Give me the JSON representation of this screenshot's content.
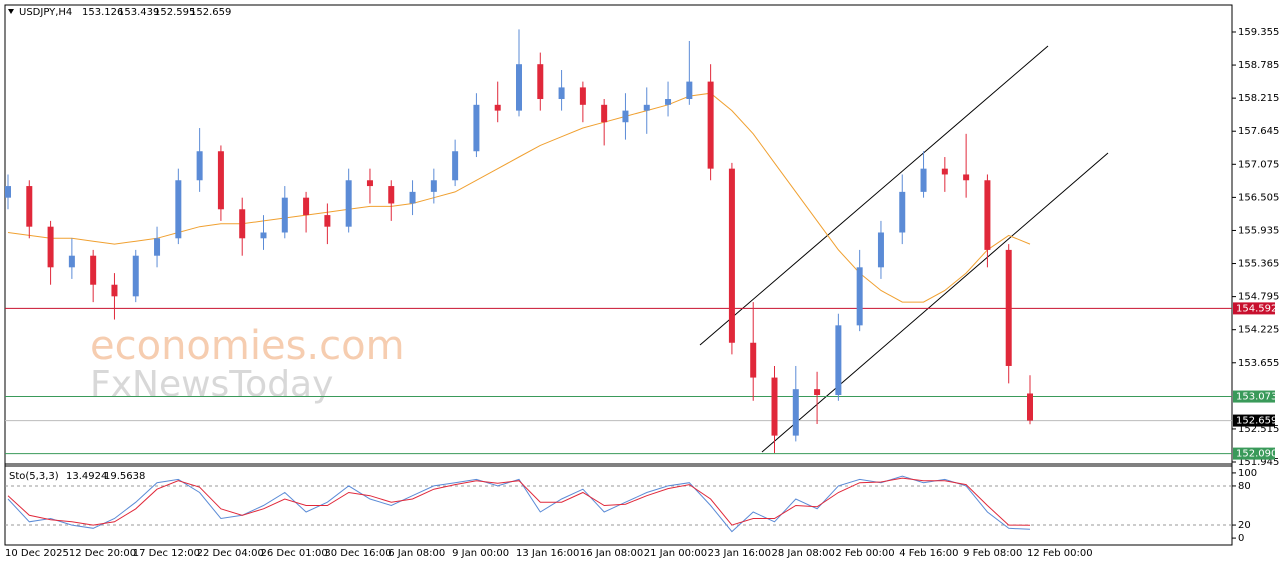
{
  "chart_data": {
    "type": "candlestick",
    "title": "USDJPY,H4",
    "ohlc_header": [
      153.126,
      153.439,
      152.595,
      152.659
    ],
    "categories": [
      "10 Dec 2025",
      null,
      null,
      "12 Dec 20:00",
      null,
      null,
      "17 Dec 12:00",
      null,
      null,
      "22 Dec 04:00",
      null,
      null,
      "26 Dec 01:00",
      null,
      null,
      "30 Dec 16:00",
      null,
      null,
      "6 Jan 08:00",
      null,
      null,
      "9 Jan 00:00",
      null,
      null,
      "13 Jan 16:00",
      null,
      null,
      "16 Jan 08:00",
      null,
      null,
      "21 Jan 00:00",
      null,
      null,
      "23 Jan 16:00",
      null,
      null,
      "28 Jan 08:00",
      null,
      null,
      "2 Feb 00:00",
      null,
      null,
      "4 Feb 16:00",
      null,
      null,
      "9 Feb 08:00",
      null,
      null,
      "12 Feb 00:00"
    ],
    "open": [
      156.5,
      156.7,
      156.0,
      155.3,
      155.5,
      155.0,
      154.8,
      155.5,
      155.8,
      156.8,
      157.3,
      156.3,
      155.8,
      155.9,
      156.5,
      156.2,
      156.0,
      156.8,
      156.7,
      156.4,
      156.6,
      156.8,
      157.3,
      158.1,
      158.0,
      158.8,
      158.2,
      158.4,
      158.1,
      157.8,
      158.0,
      158.1,
      158.2,
      158.5,
      157.0,
      154.0,
      153.4,
      152.4,
      153.2,
      153.1,
      154.3,
      155.3,
      155.9,
      156.6,
      157.0,
      156.9,
      156.8,
      155.6,
      153.126
    ],
    "high": [
      156.9,
      156.8,
      156.1,
      155.8,
      155.6,
      155.2,
      155.6,
      156.0,
      157.0,
      157.7,
      157.4,
      156.5,
      156.2,
      156.7,
      156.6,
      156.4,
      157.0,
      157.0,
      156.8,
      156.8,
      157.0,
      157.5,
      158.3,
      158.5,
      159.4,
      159.0,
      158.7,
      158.5,
      158.2,
      158.3,
      158.4,
      158.5,
      159.2,
      158.8,
      157.1,
      154.7,
      153.6,
      153.6,
      153.5,
      154.5,
      155.6,
      156.1,
      156.9,
      157.3,
      157.2,
      157.6,
      156.9,
      155.7,
      153.439
    ],
    "low": [
      156.3,
      155.8,
      155.0,
      155.1,
      154.7,
      154.4,
      154.7,
      155.3,
      155.7,
      156.6,
      156.1,
      155.5,
      155.6,
      155.8,
      155.9,
      155.7,
      155.9,
      156.4,
      156.1,
      156.2,
      156.4,
      156.7,
      157.2,
      157.8,
      157.9,
      158.0,
      158.0,
      157.8,
      157.4,
      157.5,
      157.6,
      157.9,
      158.1,
      156.8,
      153.8,
      153.0,
      152.1,
      152.3,
      152.6,
      153.0,
      154.2,
      155.1,
      155.7,
      156.5,
      156.6,
      156.5,
      155.3,
      153.3,
      152.595
    ],
    "close": [
      156.7,
      156.0,
      155.3,
      155.5,
      155.0,
      154.8,
      155.5,
      155.8,
      156.8,
      157.3,
      156.3,
      155.8,
      155.9,
      156.5,
      156.2,
      156.0,
      156.8,
      156.7,
      156.4,
      156.6,
      156.8,
      157.3,
      158.1,
      158.0,
      158.8,
      158.2,
      158.4,
      158.1,
      157.8,
      158.0,
      158.1,
      158.2,
      158.5,
      157.0,
      154.0,
      153.4,
      152.4,
      153.2,
      153.1,
      154.3,
      155.3,
      155.9,
      156.6,
      157.0,
      156.9,
      156.8,
      155.6,
      153.6,
      152.659
    ],
    "up_color": "#5b8bd6",
    "down_color": "#e0283a",
    "ylim": [
      151.928,
      159.82
    ],
    "yticks": [
      159.355,
      158.785,
      158.215,
      157.645,
      157.075,
      156.505,
      155.935,
      155.365,
      154.795,
      154.225,
      153.655,
      152.515,
      151.945
    ],
    "ma": {
      "color": "#f0a030",
      "values": [
        155.9,
        155.85,
        155.8,
        155.8,
        155.75,
        155.7,
        155.75,
        155.8,
        155.9,
        156.0,
        156.05,
        156.05,
        156.1,
        156.15,
        156.2,
        156.25,
        156.3,
        156.35,
        156.35,
        156.4,
        156.5,
        156.6,
        156.8,
        157.0,
        157.2,
        157.4,
        157.55,
        157.7,
        157.8,
        157.9,
        158.0,
        158.1,
        158.25,
        158.3,
        158.0,
        157.6,
        157.1,
        156.6,
        156.1,
        155.6,
        155.2,
        154.9,
        154.7,
        154.7,
        154.9,
        155.2,
        155.6,
        155.85,
        155.7
      ]
    },
    "levels": [
      {
        "value": 154.592,
        "color": "#c8102e"
      },
      {
        "value": 153.073,
        "color": "#3a9a5a"
      },
      {
        "value": {
          "value": 152.09,
          "label": "152.090"
        },
        "color": "#3a9a5a"
      },
      {
        "value": 152.659,
        "color": "#000000"
      }
    ],
    "stochastic": {
      "title": "Sto(5,3,3)",
      "k_label": 13.4924,
      "d_label": 19.5638,
      "k_color": "#5b8bd6",
      "d_color": "#e0283a",
      "k": [
        60,
        25,
        30,
        20,
        15,
        30,
        55,
        85,
        90,
        70,
        30,
        35,
        50,
        70,
        40,
        55,
        80,
        60,
        50,
        65,
        80,
        85,
        90,
        80,
        90,
        40,
        60,
        75,
        40,
        55,
        70,
        80,
        85,
        50,
        10,
        40,
        25,
        60,
        45,
        80,
        90,
        85,
        95,
        85,
        90,
        80,
        40,
        15,
        13.4924
      ],
      "d": [
        65,
        35,
        28,
        25,
        20,
        25,
        45,
        75,
        88,
        78,
        45,
        35,
        45,
        60,
        50,
        50,
        70,
        65,
        55,
        60,
        75,
        82,
        88,
        84,
        88,
        55,
        55,
        70,
        50,
        52,
        65,
        76,
        82,
        60,
        20,
        30,
        30,
        50,
        48,
        70,
        85,
        86,
        92,
        88,
        88,
        82,
        50,
        20,
        19.5638
      ],
      "ylim": [
        -10.6,
        110.6
      ],
      "yticks": [
        100,
        80,
        20,
        0
      ],
      "dashed": [
        80,
        20
      ]
    },
    "watermark": [
      "economies.com",
      "FxNewsToday"
    ]
  }
}
